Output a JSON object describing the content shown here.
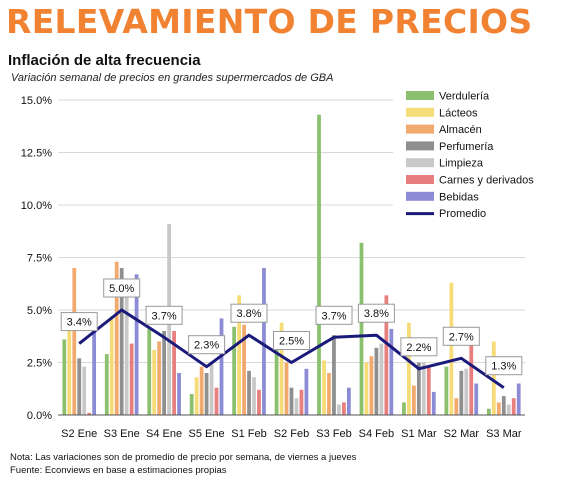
{
  "header": {
    "banner": "RELEVAMIENTO DE PRECIOS"
  },
  "footer": {
    "note": "Nota: Las variaciones son de promedio de precio por semana, de viernes a jueves",
    "source": "Fuente: Econviews en base a estimaciones propias"
  },
  "chart_data": {
    "type": "bar",
    "title": "Inflación de alta frecuencia",
    "subtitle": "Variación semanal de precios en grandes supermercados de GBA",
    "xlabel": "",
    "ylabel": "",
    "ylim": [
      0,
      15
    ],
    "yticks": [
      "0.0%",
      "2.5%",
      "5.0%",
      "7.5%",
      "10.0%",
      "12.5%",
      "15.0%"
    ],
    "grid": true,
    "legend_position": "right",
    "categories": [
      "S2 Ene",
      "S3 Ene",
      "S4 Ene",
      "S5 Ene",
      "S1 Feb",
      "S2 Feb",
      "S3 Feb",
      "S4 Feb",
      "S1 Mar",
      "S2 Mar",
      "S3 Mar"
    ],
    "series": [
      {
        "name": "Verdulería",
        "color": "#8bc16e",
        "values": [
          3.6,
          2.9,
          4.1,
          1.0,
          4.2,
          3.6,
          14.3,
          8.2,
          0.6,
          2.3,
          0.3
        ]
      },
      {
        "name": "Lácteos",
        "color": "#f5dc78",
        "values": [
          4.0,
          4.7,
          3.1,
          1.8,
          5.7,
          4.4,
          2.6,
          2.5,
          4.4,
          6.3,
          3.5
        ]
      },
      {
        "name": "Almacén",
        "color": "#f2a96e",
        "values": [
          7.0,
          7.3,
          3.5,
          2.3,
          4.3,
          2.5,
          2.0,
          2.8,
          1.4,
          0.8,
          0.6
        ]
      },
      {
        "name": "Perfumería",
        "color": "#8f8f8f",
        "values": [
          2.7,
          7.0,
          4.0,
          2.0,
          2.1,
          1.3,
          3.8,
          3.2,
          2.5,
          2.1,
          0.9
        ]
      },
      {
        "name": "Limpieza",
        "color": "#c8c8c8",
        "values": [
          2.3,
          6.5,
          9.1,
          2.5,
          1.8,
          0.8,
          0.5,
          3.4,
          2.5,
          2.2,
          0.5
        ]
      },
      {
        "name": "Carnes y derivados",
        "color": "#e87f7f",
        "values": [
          0.1,
          3.4,
          4.0,
          1.3,
          1.2,
          1.2,
          0.6,
          5.7,
          2.3,
          3.5,
          0.8
        ]
      },
      {
        "name": "Bebidas",
        "color": "#8c8cd6",
        "values": [
          4.0,
          6.7,
          2.0,
          4.6,
          7.0,
          2.2,
          1.3,
          4.1,
          1.1,
          1.5,
          1.5
        ]
      }
    ],
    "line_series": {
      "name": "Promedio",
      "color": "#1a1a7a",
      "values": [
        3.4,
        5.0,
        3.7,
        2.3,
        3.8,
        2.5,
        3.7,
        3.8,
        2.2,
        2.7,
        1.3
      ],
      "labels": [
        "3.4%",
        "5.0%",
        "3.7%",
        "2.3%",
        "3.8%",
        "2.5%",
        "3.7%",
        "3.8%",
        "2.2%",
        "2.7%",
        "1.3%"
      ]
    }
  }
}
